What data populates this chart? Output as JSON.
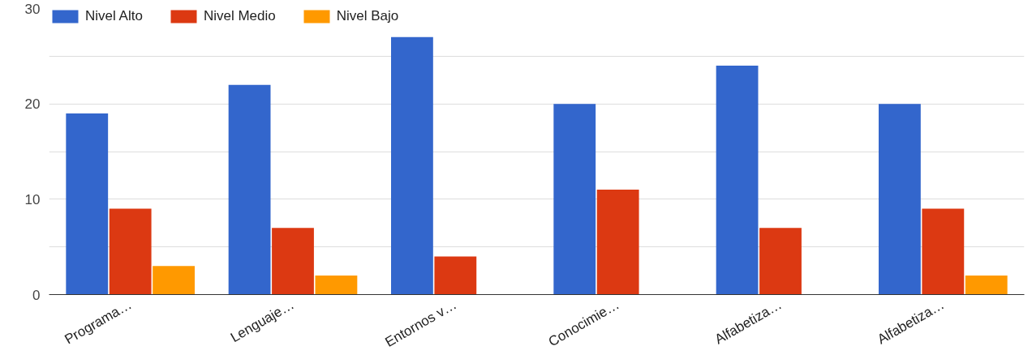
{
  "chart_data": {
    "type": "bar",
    "categories": [
      "Programa…",
      "Lenguaje…",
      "Entornos v…",
      "Conocimie…",
      "Alfabetiza…",
      "Alfabetiza…"
    ],
    "series": [
      {
        "name": "Nivel Alto",
        "color": "#3366cc",
        "values": [
          19,
          22,
          27,
          20,
          24,
          20
        ]
      },
      {
        "name": "Nivel Medio",
        "color": "#dc3912",
        "values": [
          9,
          7,
          4,
          11,
          7,
          9
        ]
      },
      {
        "name": "Nivel Bajo",
        "color": "#ff9900",
        "values": [
          3,
          2,
          0,
          0,
          0,
          2
        ]
      }
    ],
    "ylim": [
      0,
      30
    ],
    "yticks": [
      0,
      {
        "value": 5,
        "label": null
      },
      10,
      {
        "value": 15,
        "label": null
      },
      20,
      {
        "value": 25,
        "label": null
      },
      30
    ],
    "grid": "y",
    "legend": "top left"
  }
}
